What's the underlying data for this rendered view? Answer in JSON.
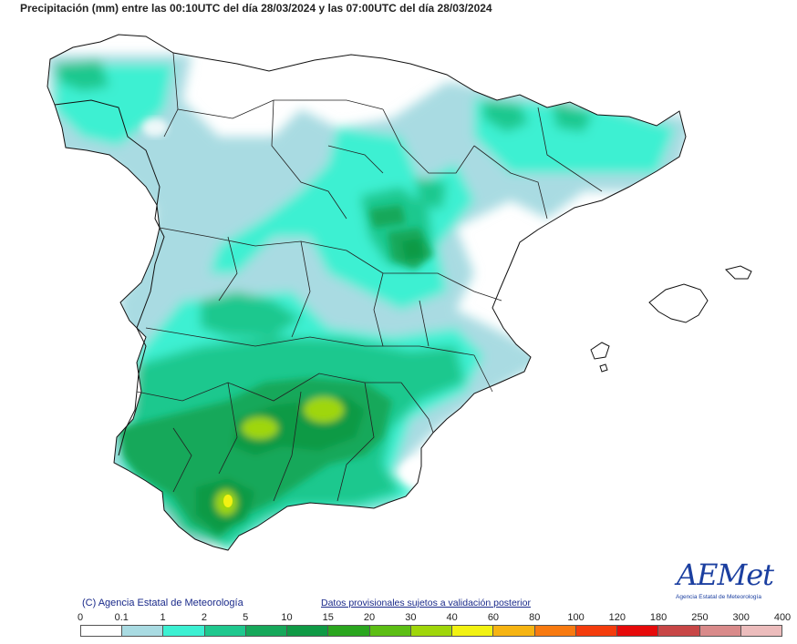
{
  "title": "Precipitación (mm) entre las 00:10UTC del día 28/03/2024 y las 07:00UTC del día 28/03/2024",
  "copyright": "(C) Agencia Estatal de Meteorología",
  "disclaimer": "Datos provisionales sujetos a validación posterior",
  "logo": {
    "word": "AEMet",
    "subtitle": "Agencia Estatal de Meteorología"
  },
  "legend": {
    "labels": [
      "0",
      "0.1",
      "1",
      "2",
      "5",
      "10",
      "15",
      "20",
      "30",
      "40",
      "60",
      "80",
      "100",
      "120",
      "180",
      "250",
      "300",
      "400"
    ],
    "colors": [
      "#ffffff",
      "#a9dbe2",
      "#3cf0d2",
      "#1fc88e",
      "#16a85a",
      "#0f9a45",
      "#2aa61e",
      "#5cbe14",
      "#9fd60a",
      "#f2f212",
      "#f6b412",
      "#f87a10",
      "#f43c0c",
      "#e60a0a",
      "#c84646",
      "#d98a8a",
      "#ecbcbc"
    ]
  },
  "map": {
    "colors": {
      "land": "#ffffff",
      "light": "#a9dbe2",
      "cyan": "#3cf0d2",
      "mint": "#1fc88e",
      "green": "#16a85a",
      "dark": "#0f9a45",
      "lime": "#9fd60a",
      "yellow": "#f2f212",
      "border": "#111111"
    }
  }
}
